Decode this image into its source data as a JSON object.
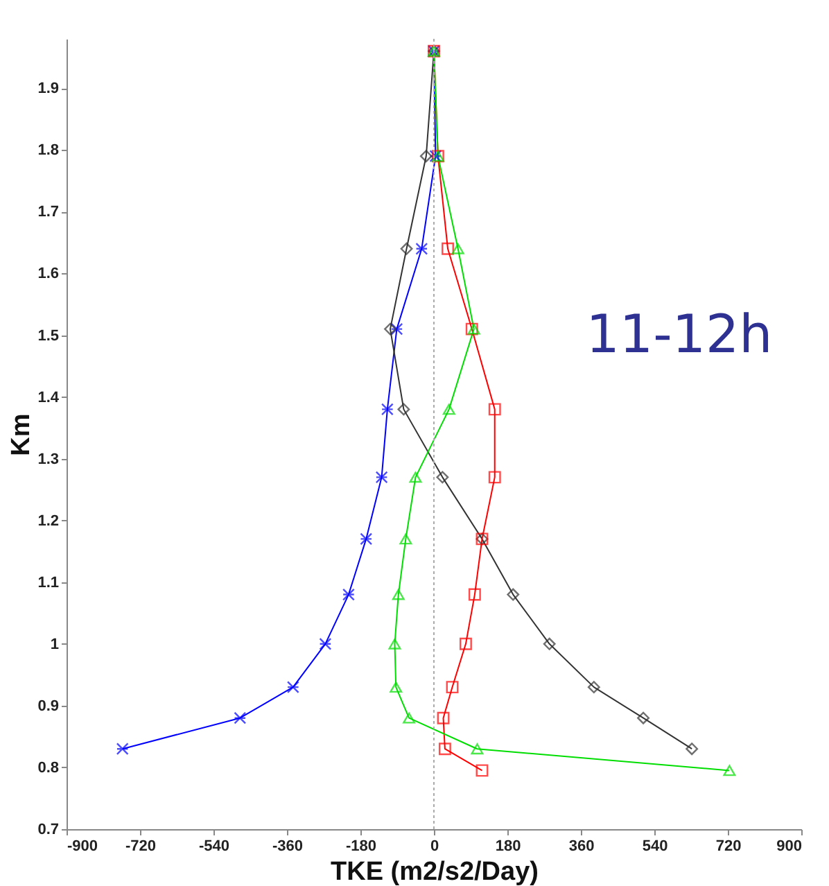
{
  "chart_data": {
    "type": "line",
    "xlabel": "TKE (m2/s2/Day)",
    "ylabel": "Km",
    "annotations": [
      "11-12h"
    ],
    "xlim": [
      -900,
      900
    ],
    "ylim": [
      0.7,
      1.98
    ],
    "xticks": [
      -900,
      -720,
      -540,
      -360,
      -180,
      0,
      180,
      360,
      540,
      720,
      900
    ],
    "yticks": [
      0.7,
      0.8,
      0.9,
      1,
      1.1,
      1.2,
      1.3,
      1.4,
      1.5,
      1.6,
      1.7,
      1.8,
      1.9
    ],
    "ref_lines": [
      {
        "axis": "x",
        "value": 0,
        "color": "#aaaaaa",
        "line_style": "dotted"
      }
    ],
    "series": [
      {
        "color": "#0000ff",
        "marker": "cross",
        "x": [
          -763,
          -475,
          -345,
          -266,
          -209,
          -166,
          -128,
          -114,
          -91,
          -30,
          4,
          0
        ],
        "values": [
          0.83,
          0.88,
          0.93,
          1.0,
          1.08,
          1.17,
          1.27,
          1.38,
          1.51,
          1.64,
          1.79,
          1.96
        ]
      },
      {
        "color": "#333333",
        "marker": "diamond",
        "x": [
          632,
          513,
          392,
          283,
          194,
          118,
          21,
          -74,
          -107,
          -67,
          -19,
          0
        ],
        "values": [
          0.83,
          0.88,
          0.93,
          1.0,
          1.08,
          1.17,
          1.27,
          1.38,
          1.51,
          1.64,
          1.79,
          1.96
        ]
      },
      {
        "color": "#ff0000",
        "marker": "square",
        "x": [
          118,
          27,
          23,
          45,
          78,
          100,
          118,
          149,
          149,
          93,
          34,
          10,
          0
        ],
        "values": [
          0.795,
          0.83,
          0.88,
          0.93,
          1.0,
          1.08,
          1.17,
          1.27,
          1.38,
          1.51,
          1.64,
          1.79,
          1.96
        ]
      },
      {
        "color": "#00dd00",
        "marker": "triangle",
        "x": [
          724,
          106,
          -61,
          -93,
          -96,
          -87,
          -69,
          -45,
          37,
          98,
          59,
          10,
          0
        ],
        "values": [
          0.795,
          0.83,
          0.88,
          0.93,
          1.0,
          1.08,
          1.17,
          1.27,
          1.38,
          1.51,
          1.64,
          1.79,
          1.96
        ]
      }
    ]
  }
}
